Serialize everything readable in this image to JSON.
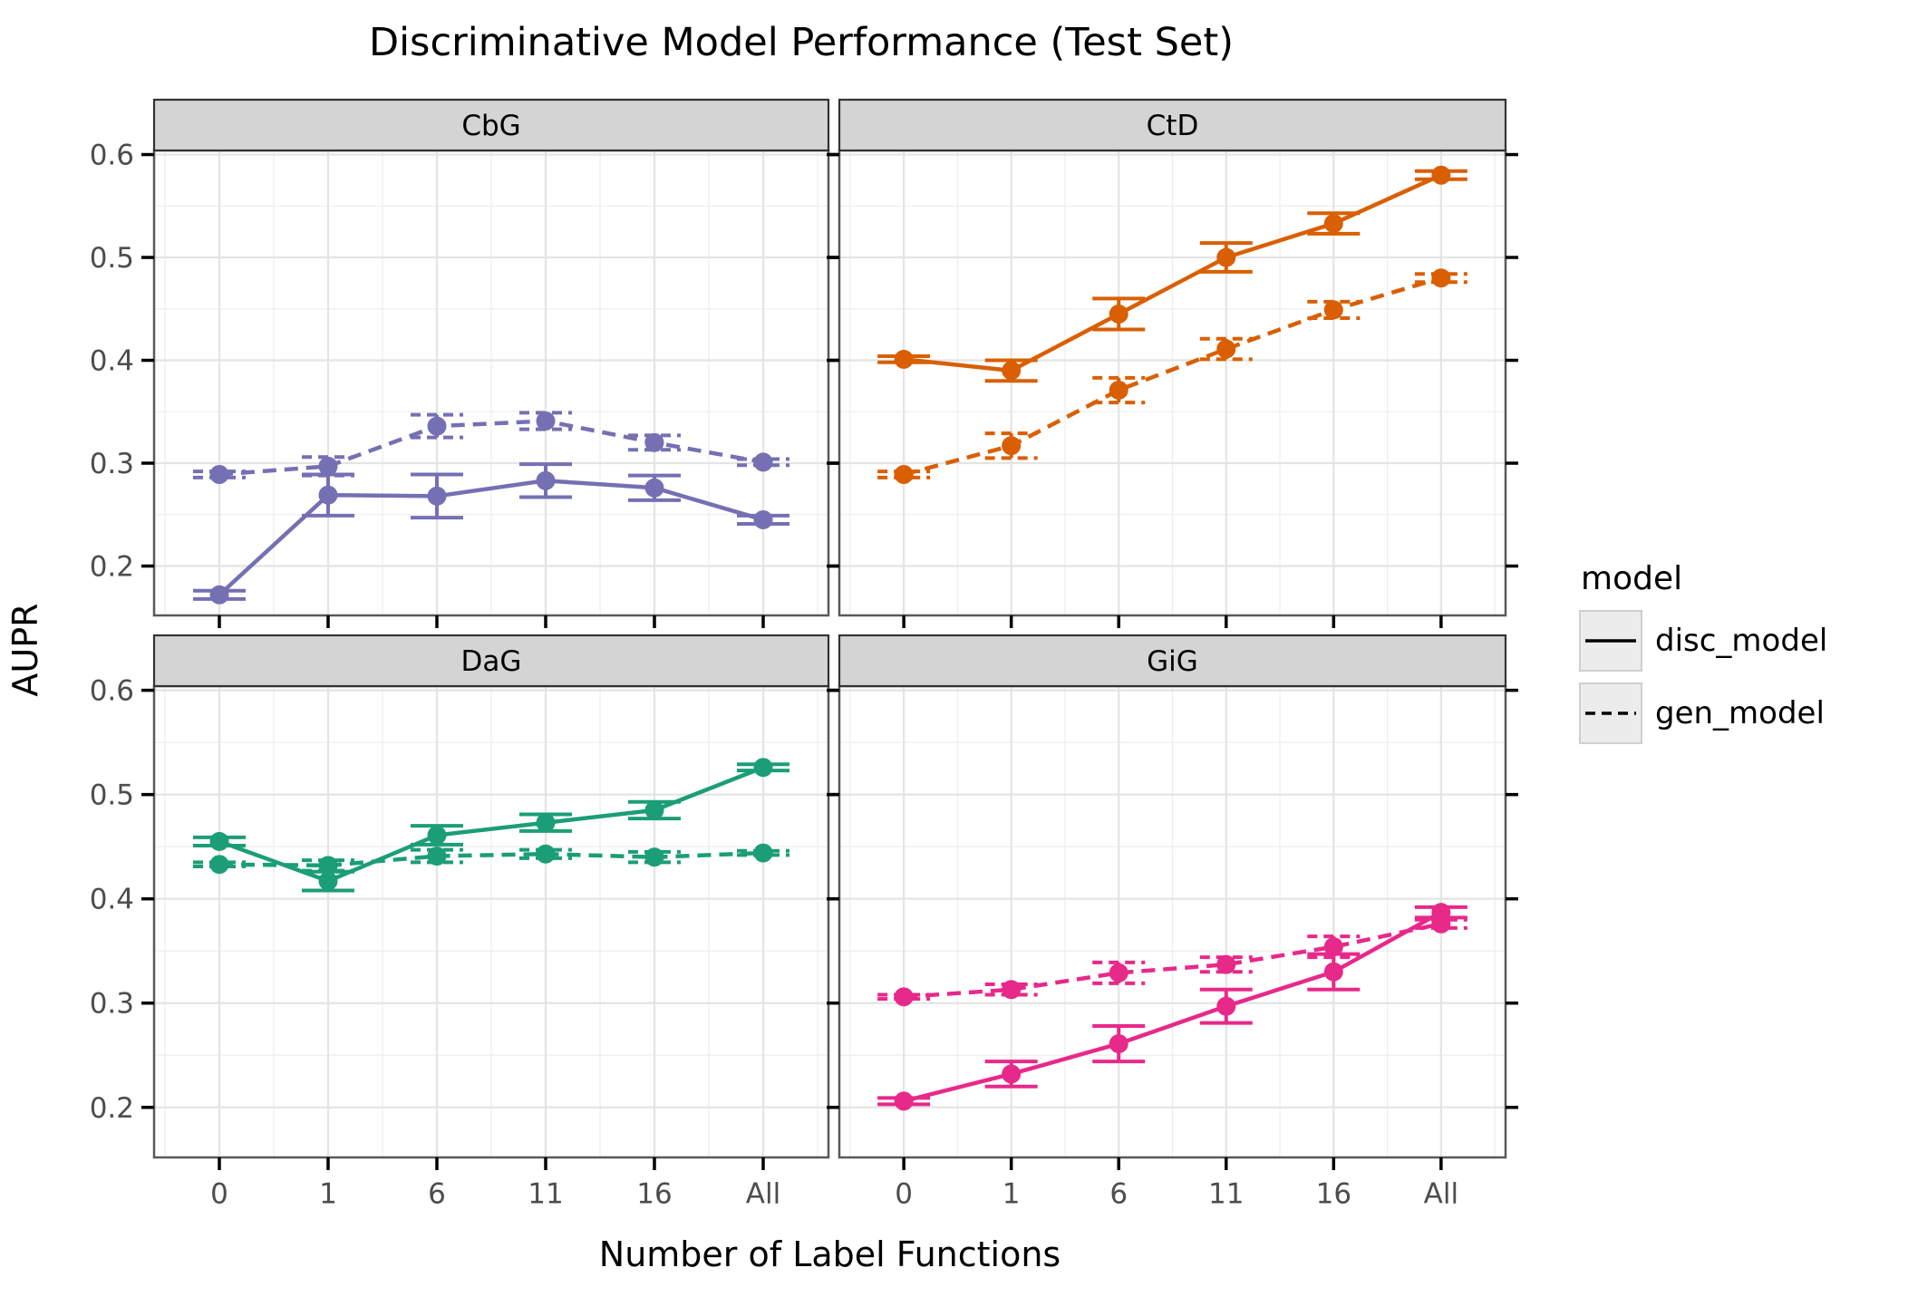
{
  "title": "Discriminative Model Performance (Test Set)",
  "axes": {
    "y_label": "AUPR",
    "x_label": "Number of Label Functions",
    "y_tick_labels": [
      "0.6",
      "0.5",
      "0.4",
      "0.3",
      "0.2"
    ],
    "x_tick_labels": [
      "0",
      "1",
      "6",
      "11",
      "16",
      "All"
    ]
  },
  "legend": {
    "title": "model",
    "entries": [
      {
        "label": "disc_model",
        "line_style": "solid"
      },
      {
        "label": "gen_model",
        "line_style": "dashed"
      }
    ]
  },
  "colors": {
    "CbG": "#7570B3",
    "CtD": "#D95F02",
    "DaG": "#1B9E77",
    "GiG": "#E7298A",
    "strip_fill": "#D4D4D4",
    "strip_border": "#333333",
    "panel_border": "#595959",
    "grid_major": "#E4E4E4",
    "grid_minor": "#EFEFEF",
    "tick_color": "#000000",
    "tick_label_color": "#4D4D4D"
  },
  "chart_data": {
    "type": "line",
    "title": "Discriminative Model Performance (Test Set)",
    "xlabel": "Number of Label Functions",
    "ylabel": "AUPR",
    "categories": [
      "0",
      "1",
      "6",
      "11",
      "16",
      "All"
    ],
    "ylim": [
      0.152,
      0.604
    ],
    "y_major_ticks": [
      0.6,
      0.5,
      0.4,
      0.3,
      0.2
    ],
    "y_minor_ticks": [
      0.55,
      0.45,
      0.35,
      0.25
    ],
    "grid": true,
    "legend_position": "right",
    "error_bars": true,
    "facets": [
      {
        "name": "CbG",
        "row": 0,
        "col": 0,
        "color": "#7570B3",
        "series": [
          {
            "name": "disc_model",
            "dash": "solid",
            "values": [
              0.172,
              0.269,
              0.268,
              0.283,
              0.276,
              0.245
            ],
            "errors": [
              0.004,
              0.02,
              0.021,
              0.016,
              0.012,
              0.004
            ]
          },
          {
            "name": "gen_model",
            "dash": "dashed",
            "values": [
              0.289,
              0.297,
              0.336,
              0.341,
              0.32,
              0.301
            ],
            "errors": [
              0.003,
              0.009,
              0.011,
              0.008,
              0.007,
              0.003
            ]
          }
        ]
      },
      {
        "name": "CtD",
        "row": 0,
        "col": 1,
        "color": "#D95F02",
        "series": [
          {
            "name": "disc_model",
            "dash": "solid",
            "values": [
              0.401,
              0.39,
              0.445,
              0.5,
              0.533,
              0.58
            ],
            "errors": [
              0.003,
              0.01,
              0.015,
              0.014,
              0.01,
              0.004
            ]
          },
          {
            "name": "gen_model",
            "dash": "dashed",
            "values": [
              0.289,
              0.317,
              0.371,
              0.411,
              0.449,
              0.48
            ],
            "errors": [
              0.003,
              0.012,
              0.012,
              0.01,
              0.008,
              0.004
            ]
          }
        ]
      },
      {
        "name": "DaG",
        "row": 1,
        "col": 0,
        "color": "#1B9E77",
        "series": [
          {
            "name": "disc_model",
            "dash": "solid",
            "values": [
              0.455,
              0.417,
              0.461,
              0.473,
              0.485,
              0.526
            ],
            "errors": [
              0.004,
              0.009,
              0.009,
              0.008,
              0.008,
              0.003
            ]
          },
          {
            "name": "gen_model",
            "dash": "dashed",
            "values": [
              0.433,
              0.432,
              0.441,
              0.443,
              0.44,
              0.444
            ],
            "errors": [
              0.002,
              0.005,
              0.006,
              0.004,
              0.005,
              0.002
            ]
          }
        ]
      },
      {
        "name": "GiG",
        "row": 1,
        "col": 1,
        "color": "#E7298A",
        "series": [
          {
            "name": "disc_model",
            "dash": "solid",
            "values": [
              0.206,
              0.232,
              0.261,
              0.297,
              0.33,
              0.387
            ],
            "errors": [
              0.003,
              0.012,
              0.017,
              0.016,
              0.017,
              0.005
            ]
          },
          {
            "name": "gen_model",
            "dash": "dashed",
            "values": [
              0.306,
              0.313,
              0.329,
              0.337,
              0.354,
              0.376
            ],
            "errors": [
              0.002,
              0.005,
              0.01,
              0.007,
              0.01,
              0.004
            ]
          }
        ]
      }
    ]
  }
}
